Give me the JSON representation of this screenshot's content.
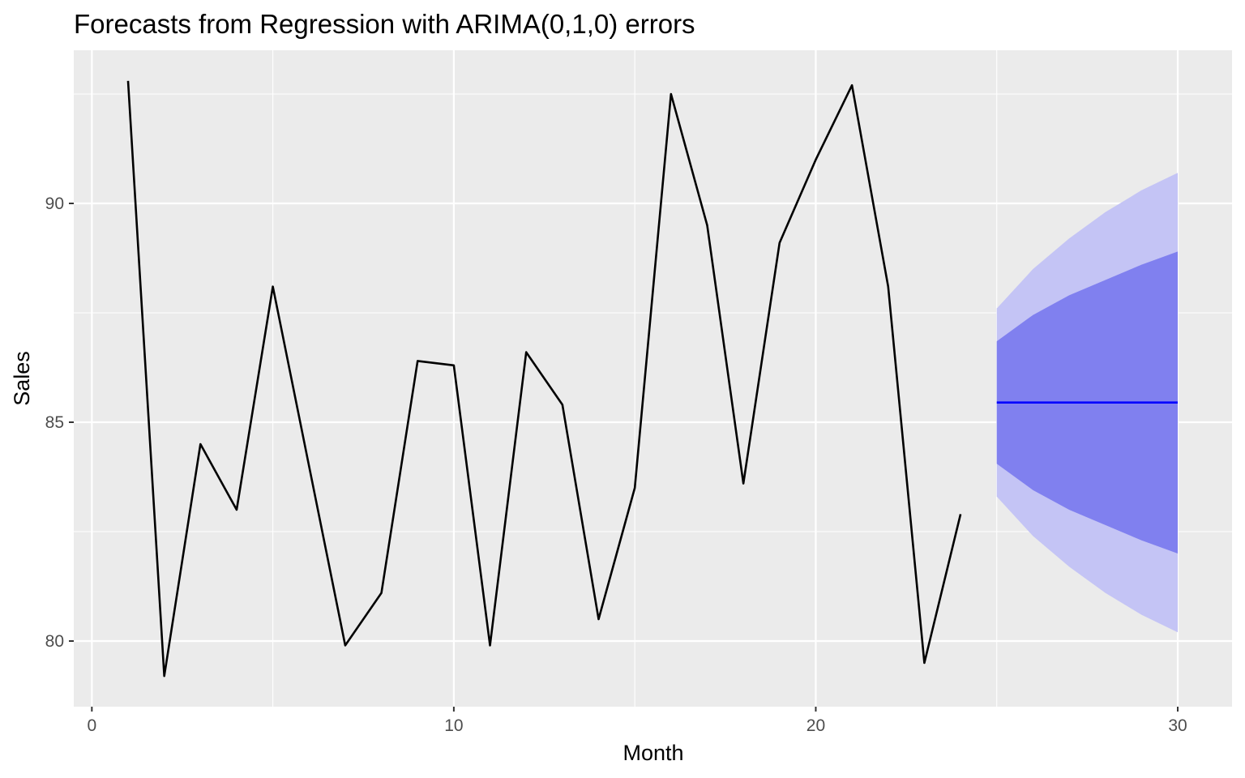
{
  "colors": {
    "panel_background": "#ebebeb",
    "grid_major": "#ffffff",
    "grid_minor": "#f5f5f5",
    "tick": "#333333",
    "observed_line": "#000000",
    "forecast_line": "#0000ff",
    "band_80": "#8080ef",
    "band_95": "#c4c4f5"
  },
  "chart_data": {
    "type": "line",
    "title": "Forecasts from Regression with ARIMA(0,1,0) errors",
    "xlabel": "Month",
    "ylabel": "Sales",
    "xlim": [
      -0.5,
      31.5
    ],
    "ylim": [
      78.5,
      93.5
    ],
    "x_ticks": [
      0,
      10,
      20,
      30
    ],
    "x_tick_labels": [
      "0",
      "10",
      "20",
      "30"
    ],
    "y_ticks": [
      80,
      85,
      90
    ],
    "y_tick_labels": [
      "80",
      "85",
      "90"
    ],
    "grid": true,
    "legend": "none",
    "series": [
      {
        "kind": "observed",
        "x": [
          1,
          2,
          3,
          4,
          5,
          6,
          7,
          8,
          9,
          10,
          11,
          12,
          13,
          14,
          15,
          16,
          17,
          18,
          19,
          20,
          21,
          22,
          23,
          24
        ],
        "values": [
          92.8,
          79.2,
          84.5,
          83.0,
          88.1,
          84.0,
          79.9,
          81.1,
          86.4,
          86.3,
          79.9,
          86.6,
          85.4,
          80.5,
          83.5,
          92.5,
          89.5,
          83.6,
          89.1,
          91.0,
          92.7,
          88.1,
          79.5,
          82.9
        ]
      },
      {
        "kind": "forecast",
        "x": [
          25,
          26,
          27,
          28,
          29,
          30
        ],
        "values": [
          85.45,
          85.45,
          85.45,
          85.45,
          85.45,
          85.45
        ],
        "lower_80": [
          84.05,
          83.45,
          83.0,
          82.65,
          82.3,
          82.0
        ],
        "upper_80": [
          86.85,
          87.45,
          87.9,
          88.25,
          88.6,
          88.9
        ],
        "lower_95": [
          83.3,
          82.4,
          81.7,
          81.1,
          80.6,
          80.2
        ],
        "upper_95": [
          87.6,
          88.5,
          89.2,
          89.8,
          90.3,
          90.7
        ]
      }
    ]
  }
}
